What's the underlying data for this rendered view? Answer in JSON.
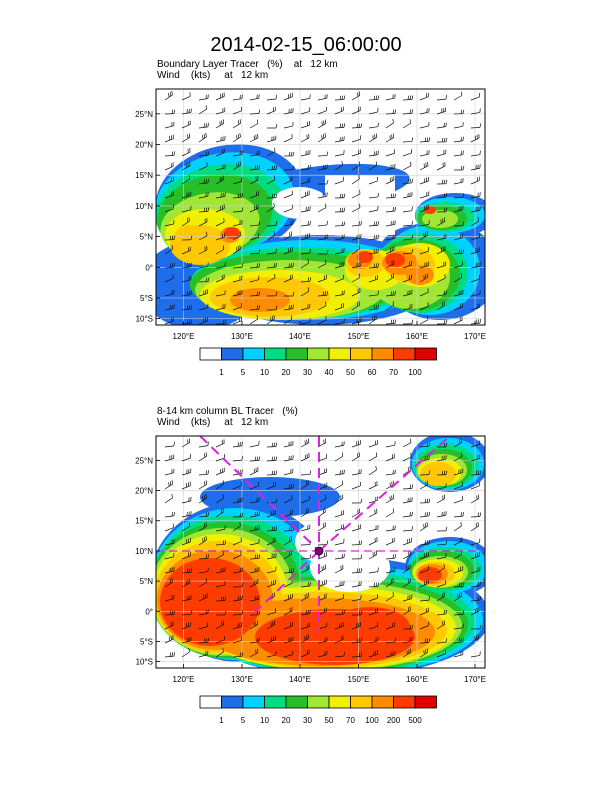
{
  "title": "2014-02-15_06:00:00",
  "panel1": {
    "line1_field": "Boundary Layer Tracer",
    "line1_units": "(%)",
    "line1_level": "at   12 km",
    "line2_field": "Wind",
    "line2_units": "(kts)",
    "line2_level": "at   12 km",
    "colorbar_labels": [
      "1",
      "5",
      "10",
      "20",
      "30",
      "40",
      "50",
      "60",
      "70",
      "100"
    ]
  },
  "panel2": {
    "line1_field": "8-14 km column BL Tracer",
    "line1_units": "(%)",
    "line2_field": "Wind",
    "line2_units": "(kts)",
    "line2_level": "at   12 km",
    "colorbar_labels": [
      "1",
      "5",
      "10",
      "20",
      "30",
      "50",
      "70",
      "100",
      "200",
      "500"
    ]
  },
  "lat_labels": [
    "25°N",
    "20°N",
    "15°N",
    "10°N",
    "5°N",
    "0°",
    "5°S",
    "10°S"
  ],
  "lon_labels": [
    "120°E",
    "130°E",
    "140°E",
    "150°E",
    "160°E",
    "170°E"
  ],
  "colorbar_colors": [
    "#ffffff",
    "#1e6eeb",
    "#00d2ff",
    "#00dc82",
    "#28be28",
    "#a0e632",
    "#f0f000",
    "#ffc800",
    "#ff8c00",
    "#ff3c00",
    "#e10000"
  ]
}
